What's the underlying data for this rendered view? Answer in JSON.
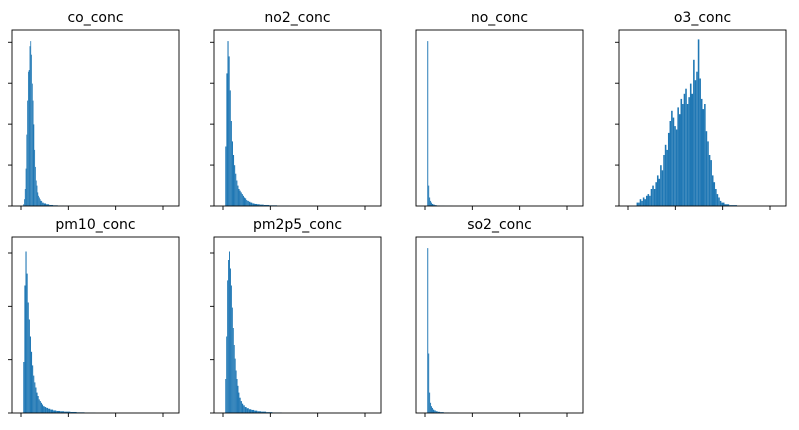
{
  "chart_data": [
    {
      "type": "bar",
      "title": "co_conc",
      "xlabel": "",
      "ylabel": "",
      "grid": false,
      "x_ticks": 4,
      "y_ticks": 5,
      "x_range": [
        0,
        1
      ],
      "y_range": [
        0,
        1
      ],
      "bins": [
        [
          0.04,
          0.045,
          0.01
        ],
        [
          0.045,
          0.05,
          0.04
        ],
        [
          0.05,
          0.055,
          0.1
        ],
        [
          0.055,
          0.06,
          0.22
        ],
        [
          0.06,
          0.065,
          0.42
        ],
        [
          0.065,
          0.07,
          0.62
        ],
        [
          0.07,
          0.075,
          0.79
        ],
        [
          0.075,
          0.08,
          0.8
        ],
        [
          0.08,
          0.085,
          0.94
        ],
        [
          0.085,
          0.09,
          0.97
        ],
        [
          0.09,
          0.095,
          0.89
        ],
        [
          0.095,
          0.1,
          0.72
        ],
        [
          0.1,
          0.105,
          0.62
        ],
        [
          0.105,
          0.11,
          0.48
        ],
        [
          0.11,
          0.115,
          0.33
        ],
        [
          0.115,
          0.12,
          0.23
        ],
        [
          0.12,
          0.125,
          0.15
        ],
        [
          0.125,
          0.13,
          0.12
        ],
        [
          0.13,
          0.135,
          0.08
        ],
        [
          0.135,
          0.14,
          0.06
        ],
        [
          0.14,
          0.145,
          0.05
        ],
        [
          0.145,
          0.15,
          0.04
        ],
        [
          0.15,
          0.155,
          0.03
        ],
        [
          0.155,
          0.16,
          0.03
        ],
        [
          0.16,
          0.17,
          0.02
        ],
        [
          0.17,
          0.185,
          0.015
        ],
        [
          0.185,
          0.205,
          0.01
        ],
        [
          0.205,
          0.23,
          0.006
        ],
        [
          0.23,
          0.26,
          0.004
        ],
        [
          0.26,
          0.3,
          0.002
        ],
        [
          0.3,
          0.36,
          0.001
        ],
        [
          0.36,
          0.46,
          0.001
        ]
      ]
    },
    {
      "type": "bar",
      "title": "no2_conc",
      "xlabel": "",
      "ylabel": "",
      "grid": false,
      "x_ticks": 4,
      "y_ticks": 5,
      "x_range": [
        0,
        1
      ],
      "y_range": [
        0,
        1
      ],
      "bins": [
        [
          0.04,
          0.047,
          0.35
        ],
        [
          0.047,
          0.054,
          0.78
        ],
        [
          0.054,
          0.061,
          0.97
        ],
        [
          0.061,
          0.068,
          0.88
        ],
        [
          0.068,
          0.075,
          0.68
        ],
        [
          0.075,
          0.082,
          0.5
        ],
        [
          0.082,
          0.089,
          0.38
        ],
        [
          0.089,
          0.096,
          0.3
        ],
        [
          0.096,
          0.103,
          0.24
        ],
        [
          0.103,
          0.11,
          0.19
        ],
        [
          0.11,
          0.117,
          0.15
        ],
        [
          0.117,
          0.124,
          0.12
        ],
        [
          0.124,
          0.131,
          0.1
        ],
        [
          0.131,
          0.138,
          0.09
        ],
        [
          0.138,
          0.145,
          0.08
        ],
        [
          0.145,
          0.152,
          0.07
        ],
        [
          0.152,
          0.159,
          0.06
        ],
        [
          0.159,
          0.166,
          0.05
        ],
        [
          0.166,
          0.173,
          0.045
        ],
        [
          0.173,
          0.18,
          0.035
        ],
        [
          0.18,
          0.19,
          0.03
        ],
        [
          0.19,
          0.2,
          0.025
        ],
        [
          0.2,
          0.212,
          0.02
        ],
        [
          0.212,
          0.226,
          0.015
        ],
        [
          0.226,
          0.242,
          0.012
        ],
        [
          0.242,
          0.26,
          0.01
        ],
        [
          0.26,
          0.285,
          0.008
        ],
        [
          0.285,
          0.32,
          0.006
        ],
        [
          0.32,
          0.37,
          0.004
        ],
        [
          0.37,
          0.45,
          0.002
        ]
      ]
    },
    {
      "type": "bar",
      "title": "no_conc",
      "xlabel": "",
      "ylabel": "",
      "grid": false,
      "x_ticks": 4,
      "y_ticks": 0,
      "x_range": [
        0,
        1
      ],
      "y_range": [
        0,
        1
      ],
      "bins": [
        [
          0.04,
          0.046,
          0.97
        ],
        [
          0.046,
          0.052,
          0.12
        ],
        [
          0.052,
          0.058,
          0.05
        ],
        [
          0.058,
          0.064,
          0.03
        ],
        [
          0.064,
          0.07,
          0.02
        ],
        [
          0.07,
          0.078,
          0.012
        ],
        [
          0.078,
          0.088,
          0.008
        ],
        [
          0.088,
          0.1,
          0.005
        ],
        [
          0.1,
          0.12,
          0.003
        ],
        [
          0.12,
          0.15,
          0.002
        ],
        [
          0.15,
          0.2,
          0.001
        ]
      ]
    },
    {
      "type": "bar",
      "title": "o3_conc",
      "xlabel": "",
      "ylabel": "",
      "grid": false,
      "x_ticks": 4,
      "y_ticks": 5,
      "x_range": [
        0,
        1
      ],
      "y_range": [
        0,
        1
      ],
      "bins": [
        [
          0.08,
          0.09,
          0.02
        ],
        [
          0.09,
          0.1,
          0.02
        ],
        [
          0.1,
          0.11,
          0.04
        ],
        [
          0.11,
          0.12,
          0.03
        ],
        [
          0.12,
          0.13,
          0.05
        ],
        [
          0.13,
          0.14,
          0.04
        ],
        [
          0.14,
          0.15,
          0.06
        ],
        [
          0.15,
          0.16,
          0.07
        ],
        [
          0.16,
          0.17,
          0.06
        ],
        [
          0.17,
          0.18,
          0.1
        ],
        [
          0.18,
          0.19,
          0.12
        ],
        [
          0.19,
          0.2,
          0.1
        ],
        [
          0.2,
          0.21,
          0.14
        ],
        [
          0.21,
          0.22,
          0.18
        ],
        [
          0.22,
          0.23,
          0.16
        ],
        [
          0.23,
          0.24,
          0.24
        ],
        [
          0.24,
          0.25,
          0.21
        ],
        [
          0.25,
          0.26,
          0.3
        ],
        [
          0.26,
          0.27,
          0.36
        ],
        [
          0.27,
          0.28,
          0.33
        ],
        [
          0.28,
          0.29,
          0.43
        ],
        [
          0.29,
          0.3,
          0.5
        ],
        [
          0.3,
          0.31,
          0.56
        ],
        [
          0.31,
          0.32,
          0.52
        ],
        [
          0.32,
          0.33,
          0.47
        ],
        [
          0.33,
          0.34,
          0.45
        ],
        [
          0.34,
          0.35,
          0.58
        ],
        [
          0.35,
          0.36,
          0.54
        ],
        [
          0.36,
          0.37,
          0.63
        ],
        [
          0.37,
          0.38,
          0.6
        ],
        [
          0.38,
          0.39,
          0.66
        ],
        [
          0.39,
          0.4,
          0.69
        ],
        [
          0.4,
          0.41,
          0.6
        ],
        [
          0.41,
          0.42,
          0.64
        ],
        [
          0.42,
          0.43,
          0.72
        ],
        [
          0.43,
          0.44,
          0.66
        ],
        [
          0.44,
          0.45,
          0.86
        ],
        [
          0.45,
          0.46,
          0.74
        ],
        [
          0.46,
          0.47,
          0.79
        ],
        [
          0.47,
          0.48,
          0.98
        ],
        [
          0.48,
          0.49,
          0.75
        ],
        [
          0.49,
          0.5,
          0.63
        ],
        [
          0.5,
          0.51,
          0.57
        ],
        [
          0.51,
          0.52,
          0.6
        ],
        [
          0.52,
          0.53,
          0.44
        ],
        [
          0.53,
          0.54,
          0.38
        ],
        [
          0.54,
          0.55,
          0.3
        ],
        [
          0.55,
          0.56,
          0.27
        ],
        [
          0.56,
          0.57,
          0.18
        ],
        [
          0.57,
          0.58,
          0.14
        ],
        [
          0.58,
          0.59,
          0.1
        ],
        [
          0.59,
          0.6,
          0.07
        ],
        [
          0.6,
          0.61,
          0.05
        ],
        [
          0.61,
          0.62,
          0.03
        ],
        [
          0.62,
          0.64,
          0.02
        ],
        [
          0.64,
          0.67,
          0.01
        ],
        [
          0.67,
          0.72,
          0.005
        ]
      ]
    },
    {
      "type": "bar",
      "title": "pm10_conc",
      "xlabel": "",
      "ylabel": "",
      "grid": false,
      "x_ticks": 4,
      "y_ticks": 4,
      "x_range": [
        0,
        1
      ],
      "y_range": [
        0,
        1
      ],
      "bins": [
        [
          0.04,
          0.047,
          0.3
        ],
        [
          0.047,
          0.054,
          0.75
        ],
        [
          0.054,
          0.061,
          0.95
        ],
        [
          0.061,
          0.068,
          0.82
        ],
        [
          0.068,
          0.075,
          0.65
        ],
        [
          0.075,
          0.082,
          0.55
        ],
        [
          0.082,
          0.089,
          0.45
        ],
        [
          0.089,
          0.096,
          0.36
        ],
        [
          0.096,
          0.103,
          0.28
        ],
        [
          0.103,
          0.11,
          0.22
        ],
        [
          0.11,
          0.117,
          0.18
        ],
        [
          0.117,
          0.124,
          0.15
        ],
        [
          0.124,
          0.131,
          0.12
        ],
        [
          0.131,
          0.138,
          0.1
        ],
        [
          0.138,
          0.145,
          0.08
        ],
        [
          0.145,
          0.152,
          0.07
        ],
        [
          0.152,
          0.159,
          0.06
        ],
        [
          0.159,
          0.166,
          0.05
        ],
        [
          0.166,
          0.176,
          0.04
        ],
        [
          0.176,
          0.186,
          0.035
        ],
        [
          0.186,
          0.198,
          0.03
        ],
        [
          0.198,
          0.212,
          0.025
        ],
        [
          0.212,
          0.23,
          0.02
        ],
        [
          0.23,
          0.25,
          0.015
        ],
        [
          0.25,
          0.275,
          0.012
        ],
        [
          0.275,
          0.3,
          0.01
        ],
        [
          0.3,
          0.34,
          0.008
        ],
        [
          0.34,
          0.38,
          0.006
        ],
        [
          0.38,
          0.43,
          0.004
        ],
        [
          0.43,
          0.5,
          0.002
        ]
      ]
    },
    {
      "type": "bar",
      "title": "pm2p5_conc",
      "xlabel": "",
      "ylabel": "",
      "grid": false,
      "x_ticks": 4,
      "y_ticks": 4,
      "x_range": [
        0,
        1
      ],
      "y_range": [
        0,
        1
      ],
      "bins": [
        [
          0.04,
          0.046,
          0.2
        ],
        [
          0.046,
          0.052,
          0.45
        ],
        [
          0.052,
          0.058,
          0.78
        ],
        [
          0.058,
          0.064,
          0.9
        ],
        [
          0.064,
          0.07,
          0.95
        ],
        [
          0.07,
          0.076,
          0.85
        ],
        [
          0.076,
          0.082,
          0.75
        ],
        [
          0.082,
          0.088,
          0.62
        ],
        [
          0.088,
          0.094,
          0.5
        ],
        [
          0.094,
          0.1,
          0.4
        ],
        [
          0.1,
          0.106,
          0.32
        ],
        [
          0.106,
          0.112,
          0.25
        ],
        [
          0.112,
          0.118,
          0.2
        ],
        [
          0.118,
          0.124,
          0.16
        ],
        [
          0.124,
          0.13,
          0.12
        ],
        [
          0.13,
          0.138,
          0.09
        ],
        [
          0.138,
          0.146,
          0.07
        ],
        [
          0.146,
          0.154,
          0.055
        ],
        [
          0.154,
          0.164,
          0.045
        ],
        [
          0.164,
          0.176,
          0.035
        ],
        [
          0.176,
          0.19,
          0.028
        ],
        [
          0.19,
          0.206,
          0.022
        ],
        [
          0.206,
          0.224,
          0.018
        ],
        [
          0.224,
          0.244,
          0.014
        ],
        [
          0.244,
          0.268,
          0.01
        ],
        [
          0.268,
          0.3,
          0.008
        ],
        [
          0.3,
          0.34,
          0.005
        ],
        [
          0.34,
          0.4,
          0.003
        ]
      ]
    },
    {
      "type": "bar",
      "title": "so2_conc",
      "xlabel": "",
      "ylabel": "",
      "grid": false,
      "x_ticks": 4,
      "y_ticks": 0,
      "x_range": [
        0,
        1
      ],
      "y_range": [
        0,
        1
      ],
      "bins": [
        [
          0.04,
          0.046,
          0.97
        ],
        [
          0.046,
          0.052,
          0.35
        ],
        [
          0.052,
          0.058,
          0.12
        ],
        [
          0.058,
          0.064,
          0.06
        ],
        [
          0.064,
          0.07,
          0.04
        ],
        [
          0.07,
          0.076,
          0.03
        ],
        [
          0.076,
          0.084,
          0.02
        ],
        [
          0.084,
          0.094,
          0.015
        ],
        [
          0.094,
          0.106,
          0.01
        ],
        [
          0.106,
          0.122,
          0.007
        ],
        [
          0.122,
          0.145,
          0.005
        ],
        [
          0.145,
          0.18,
          0.003
        ],
        [
          0.18,
          0.24,
          0.002
        ]
      ]
    }
  ],
  "style": {
    "bar_color": "#1f77b4",
    "axis_color": "#000000",
    "background": "#ffffff"
  }
}
